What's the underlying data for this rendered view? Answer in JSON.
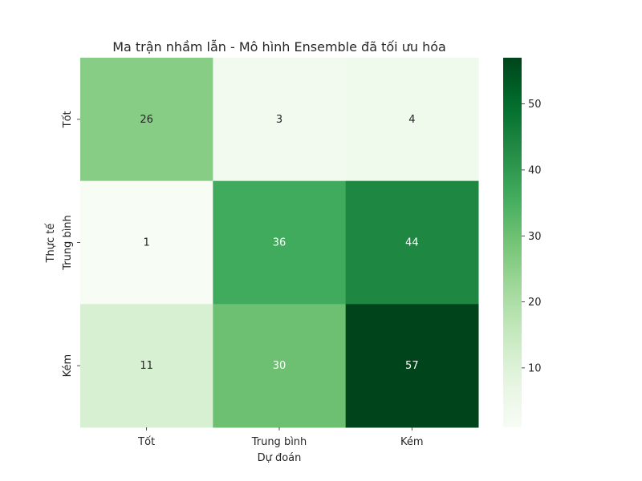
{
  "chart_data": {
    "type": "heatmap",
    "title": "Ma trận nhầm lẫn - Mô hình Ensemble đã tối ưu hóa",
    "xlabel": "Dự đoán",
    "ylabel": "Thực tế",
    "x_categories": [
      "Tốt",
      "Trung bình",
      "Kém"
    ],
    "y_categories": [
      "Tốt",
      "Trung bình",
      "Kém"
    ],
    "values": [
      [
        26,
        3,
        4
      ],
      [
        1,
        36,
        44
      ],
      [
        11,
        30,
        57
      ]
    ],
    "colormap": "Greens",
    "vmin": 1,
    "vmax": 57,
    "colorbar": {
      "ticks": [
        10,
        20,
        30,
        40,
        50
      ]
    }
  }
}
